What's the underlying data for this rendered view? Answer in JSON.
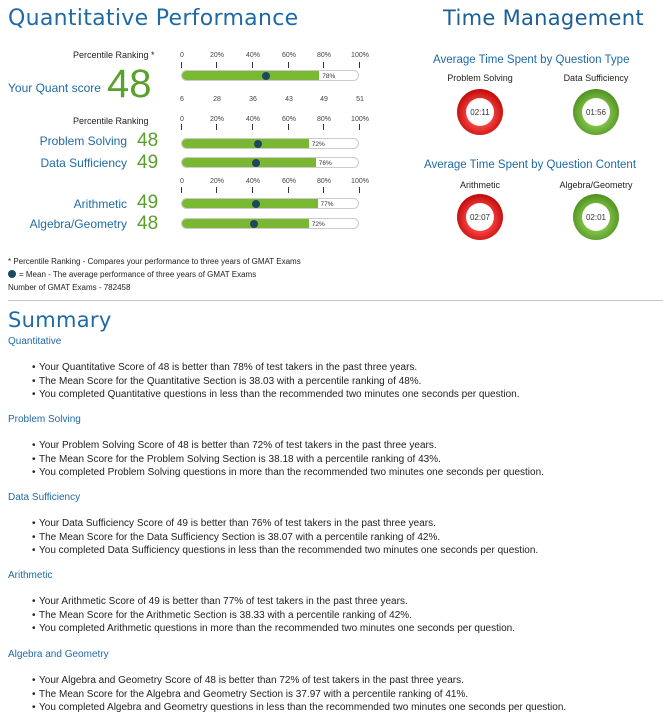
{
  "quant_title": "Quantitative Performance",
  "time_title": "Time Management",
  "percentile_label_star": "Percentile Ranking *",
  "percentile_label": "Percentile Ranking",
  "percent_ticks": [
    "0",
    "20%",
    "40%",
    "60%",
    "80%",
    "100%"
  ],
  "score_ticks": [
    "6",
    "28",
    "36",
    "43",
    "49",
    "51"
  ],
  "quant_score": {
    "label": "Your Quant score",
    "value": "48",
    "percentile": 0.78,
    "mean_percentile": 0.48,
    "pct_text": "78%"
  },
  "sections": [
    {
      "label": "Problem Solving",
      "value": "48",
      "percentile": 0.72,
      "mean_percentile": 0.43,
      "pct_text": "72%"
    },
    {
      "label": "Data Sufficiency",
      "value": "49",
      "percentile": 0.76,
      "mean_percentile": 0.42,
      "pct_text": "76%"
    },
    {
      "label": "Arithmetic",
      "value": "49",
      "percentile": 0.77,
      "mean_percentile": 0.42,
      "pct_text": "77%"
    },
    {
      "label": "Algebra/Geometry",
      "value": "48",
      "percentile": 0.72,
      "mean_percentile": 0.41,
      "pct_text": "72%"
    }
  ],
  "time_type_title": "Average Time Spent by Question Type",
  "time_content_title": "Average Time Spent by Question Content",
  "time_items": [
    {
      "label": "Problem Solving",
      "time": "02:11",
      "status": "red"
    },
    {
      "label": "Data Sufficiency",
      "time": "01:56",
      "status": "green"
    },
    {
      "label": "Arithmetic",
      "time": "02:07",
      "status": "red"
    },
    {
      "label": "Algebra/Geometry",
      "time": "02:01",
      "status": "green"
    }
  ],
  "footnotes": {
    "percentile": "* Percentile Ranking - Compares your performance to three years of GMAT Exams",
    "mean": "= Mean - The average performance of three years of GMAT Exams",
    "count": "Number of GMAT Exams - 782458"
  },
  "summary_title": "Summary",
  "summary": [
    {
      "heading": "Quantitative",
      "bullets": [
        "Your Quantitative Score of 48 is better than 78% of test takers in the past three years.",
        "The Mean Score for the Quantitative Section is 38.03 with a percentile ranking of 48%.",
        "You completed Quantitative questions in less than the recommended two minutes one seconds per question."
      ]
    },
    {
      "heading": "Problem Solving",
      "bullets": [
        "Your Problem Solving Score of 48 is better than 72% of test takers in the past three years.",
        "The Mean Score for the Problem Solving Section is 38.18 with a percentile ranking of 43%.",
        "You completed Problem Solving questions in more than the recommended two minutes one seconds per question."
      ]
    },
    {
      "heading": "Data Sufficiency",
      "bullets": [
        "Your Data Sufficiency Score of 49 is better than 76% of test takers in the past three years.",
        "The Mean Score for the Data Sufficiency Section is 38.07 with a percentile ranking of 42%.",
        "You completed Data Sufficiency questions in less than the recommended two minutes one seconds per question."
      ]
    },
    {
      "heading": "Arithmetic",
      "bullets": [
        "Your Arithmetic Score of 49 is better than 77% of test takers in the past three years.",
        "The Mean Score for the Arithmetic Section is 38.33 with a percentile ranking of 42%.",
        "You completed Arithmetic questions in more than the recommended two minutes one seconds per question."
      ]
    },
    {
      "heading": "Algebra and Geometry",
      "bullets": [
        "Your Algebra and Geometry Score of 48 is better than 72% of test takers in the past three years.",
        "The Mean Score for the Algebra and Geometry Section is 37.97 with a percentile ranking of 41%.",
        "You completed Algebra and Geometry questions in less than the recommended two minutes one seconds per question."
      ]
    }
  ]
}
